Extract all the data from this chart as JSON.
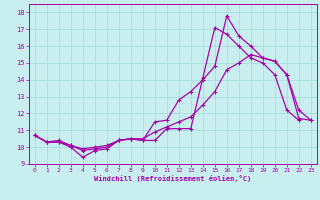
{
  "title": "",
  "xlabel": "Windchill (Refroidissement éolien,°C)",
  "xlim": [
    -0.5,
    23.5
  ],
  "ylim": [
    9,
    18.5
  ],
  "yticks": [
    9,
    10,
    11,
    12,
    13,
    14,
    15,
    16,
    17,
    18
  ],
  "xticks": [
    0,
    1,
    2,
    3,
    4,
    5,
    6,
    7,
    8,
    9,
    10,
    11,
    12,
    13,
    14,
    15,
    16,
    17,
    18,
    19,
    20,
    21,
    22,
    23
  ],
  "bg_color": "#c8eef0",
  "grid_color": "#a8dce0",
  "line_color": "#aa00aa",
  "series1_x": [
    0,
    1,
    2,
    3,
    4,
    5,
    6,
    7,
    8,
    9,
    10,
    11,
    12,
    13,
    14,
    15,
    16,
    17,
    18,
    19,
    20,
    21,
    22
  ],
  "series1_y": [
    10.7,
    10.3,
    10.3,
    10.0,
    9.4,
    9.8,
    9.9,
    10.4,
    10.5,
    10.4,
    10.4,
    11.1,
    11.1,
    11.1,
    14.1,
    17.1,
    16.7,
    16.0,
    15.3,
    15.0,
    14.3,
    12.2,
    11.6
  ],
  "series2_x": [
    0,
    1,
    2,
    3,
    4,
    5,
    6,
    7,
    8,
    9,
    10,
    11,
    12,
    13,
    14,
    15,
    16,
    17,
    18,
    19,
    20,
    21,
    22,
    23
  ],
  "series2_y": [
    10.7,
    10.3,
    10.3,
    10.1,
    9.8,
    9.9,
    10.0,
    10.4,
    10.5,
    10.4,
    11.5,
    11.6,
    12.8,
    13.3,
    14.0,
    14.8,
    17.8,
    16.6,
    16.0,
    15.3,
    15.1,
    14.3,
    12.2,
    11.6
  ],
  "series3_x": [
    0,
    1,
    2,
    3,
    4,
    5,
    6,
    7,
    8,
    9,
    10,
    11,
    12,
    13,
    14,
    15,
    16,
    17,
    18,
    19,
    20,
    21,
    22,
    23
  ],
  "series3_y": [
    10.7,
    10.3,
    10.4,
    10.1,
    9.9,
    10.0,
    10.1,
    10.4,
    10.5,
    10.5,
    10.9,
    11.2,
    11.5,
    11.8,
    12.5,
    13.3,
    14.6,
    15.0,
    15.5,
    15.3,
    15.1,
    14.3,
    11.7,
    11.6
  ]
}
